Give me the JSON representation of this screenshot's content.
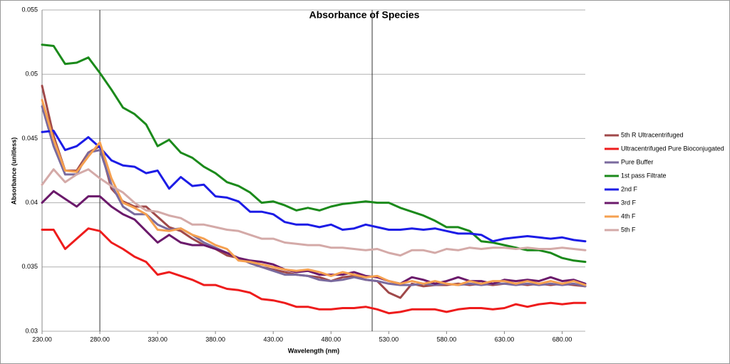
{
  "chart_data": {
    "type": "line",
    "title": "Absorbance of Species",
    "x_label": "Wavelength (nm)",
    "y_label": "Absorbance (unitless)",
    "x": [
      230,
      240,
      250,
      260,
      270,
      280,
      290,
      300,
      310,
      320,
      330,
      340,
      350,
      360,
      370,
      380,
      390,
      400,
      410,
      420,
      430,
      440,
      450,
      460,
      470,
      480,
      490,
      500,
      510,
      520,
      530,
      540,
      550,
      560,
      570,
      580,
      590,
      600,
      610,
      620,
      630,
      640,
      650,
      660,
      670,
      680,
      690,
      700
    ],
    "xlim": [
      230,
      700
    ],
    "xticks": [
      {
        "value": 230,
        "label": "230.00"
      },
      {
        "value": 280,
        "label": "280.00"
      },
      {
        "value": 330,
        "label": "330.00"
      },
      {
        "value": 380,
        "label": "380.00"
      },
      {
        "value": 430,
        "label": "430.00"
      },
      {
        "value": 480,
        "label": "480.00"
      },
      {
        "value": 530,
        "label": "530.00"
      },
      {
        "value": 580,
        "label": "580.00"
      },
      {
        "value": 630,
        "label": "630.00"
      },
      {
        "value": 680,
        "label": "680.00"
      }
    ],
    "ylim": [
      0.03,
      0.055
    ],
    "yticks": [
      0.03,
      0.035,
      0.04,
      0.045,
      0.05,
      0.055
    ],
    "grid": true,
    "legend": "right",
    "vertical_lines": [
      280,
      515.6
    ],
    "series": [
      {
        "name": "5th R Ultracentrifuged",
        "color": "#a0494a",
        "values": [
          0.0491,
          0.0452,
          0.0425,
          0.0425,
          0.0439,
          0.0444,
          0.0411,
          0.0401,
          0.0397,
          0.0397,
          0.0389,
          0.0381,
          0.0378,
          0.0372,
          0.0367,
          0.0364,
          0.0359,
          0.0357,
          0.0353,
          0.035,
          0.0348,
          0.0346,
          0.0344,
          0.0343,
          0.0342,
          0.0339,
          0.0342,
          0.0343,
          0.034,
          0.0339,
          0.033,
          0.0326,
          0.0337,
          0.0335,
          0.0336,
          0.0336,
          0.0337,
          0.0336,
          0.0337,
          0.0336,
          0.0337,
          0.0337,
          0.0336,
          0.0337,
          0.0336,
          0.0337,
          0.0336,
          0.0335
        ]
      },
      {
        "name": "Ultracentrifuged Pure Bioconjugated",
        "color": "#ee1c1c",
        "values": [
          0.0379,
          0.0379,
          0.0364,
          0.0372,
          0.038,
          0.0378,
          0.0369,
          0.0364,
          0.0358,
          0.0354,
          0.0344,
          0.0346,
          0.0343,
          0.034,
          0.0336,
          0.0336,
          0.0333,
          0.0332,
          0.033,
          0.0325,
          0.0324,
          0.0322,
          0.0319,
          0.0319,
          0.0317,
          0.0317,
          0.0318,
          0.0318,
          0.0319,
          0.0317,
          0.0314,
          0.0315,
          0.0317,
          0.0317,
          0.0317,
          0.0315,
          0.0317,
          0.0318,
          0.0318,
          0.0317,
          0.0318,
          0.0321,
          0.0319,
          0.0321,
          0.0322,
          0.0321,
          0.0322,
          0.0322
        ]
      },
      {
        "name": "Pure Buffer",
        "color": "#7a6a9e",
        "values": [
          0.0475,
          0.0444,
          0.0422,
          0.0422,
          0.0439,
          0.0441,
          0.0414,
          0.0397,
          0.0391,
          0.0391,
          0.0383,
          0.0379,
          0.038,
          0.0375,
          0.0369,
          0.0365,
          0.0361,
          0.0357,
          0.0353,
          0.035,
          0.0347,
          0.0344,
          0.0344,
          0.0343,
          0.034,
          0.0339,
          0.034,
          0.0342,
          0.034,
          0.0339,
          0.0337,
          0.0336,
          0.0336,
          0.0337,
          0.0336,
          0.0337,
          0.0336,
          0.0337,
          0.0336,
          0.0337,
          0.0337,
          0.0336,
          0.0337,
          0.0336,
          0.0337,
          0.0336,
          0.0337,
          0.0335
        ]
      },
      {
        "name": "1st pass Filtrate",
        "color": "#1b8a1b",
        "values": [
          0.0523,
          0.0522,
          0.0508,
          0.0509,
          0.0513,
          0.0501,
          0.0488,
          0.0474,
          0.0469,
          0.0461,
          0.0444,
          0.0449,
          0.0439,
          0.0435,
          0.0428,
          0.0423,
          0.0416,
          0.0413,
          0.0408,
          0.04,
          0.0401,
          0.0398,
          0.0394,
          0.0396,
          0.0394,
          0.0397,
          0.0399,
          0.04,
          0.0401,
          0.04,
          0.04,
          0.0396,
          0.0393,
          0.039,
          0.0386,
          0.0381,
          0.0381,
          0.0378,
          0.037,
          0.0369,
          0.0367,
          0.0365,
          0.0363,
          0.0363,
          0.0361,
          0.0357,
          0.0355,
          0.0354
        ]
      },
      {
        "name": "2nd F",
        "color": "#1c1ce6",
        "values": [
          0.0455,
          0.0456,
          0.0441,
          0.0444,
          0.0451,
          0.0443,
          0.0433,
          0.0429,
          0.0428,
          0.0423,
          0.0425,
          0.0411,
          0.042,
          0.0413,
          0.0414,
          0.0405,
          0.0404,
          0.0401,
          0.0393,
          0.0393,
          0.0391,
          0.0385,
          0.0383,
          0.0383,
          0.0381,
          0.0383,
          0.0379,
          0.038,
          0.0383,
          0.0381,
          0.0379,
          0.0379,
          0.038,
          0.0379,
          0.038,
          0.0378,
          0.0376,
          0.0376,
          0.0375,
          0.037,
          0.0372,
          0.0373,
          0.0374,
          0.0373,
          0.0372,
          0.0373,
          0.0371,
          0.037
        ]
      },
      {
        "name": "3rd F",
        "color": "#6b1a6b",
        "values": [
          0.04,
          0.0409,
          0.0403,
          0.0397,
          0.0405,
          0.0405,
          0.0397,
          0.0391,
          0.0387,
          0.0378,
          0.0369,
          0.0375,
          0.0369,
          0.0367,
          0.0367,
          0.0364,
          0.0361,
          0.0357,
          0.0355,
          0.0354,
          0.0352,
          0.0348,
          0.0346,
          0.0347,
          0.0344,
          0.0344,
          0.0344,
          0.0346,
          0.0343,
          0.0342,
          0.0339,
          0.0337,
          0.0342,
          0.034,
          0.0337,
          0.0339,
          0.0342,
          0.0339,
          0.0339,
          0.0337,
          0.034,
          0.0339,
          0.034,
          0.0339,
          0.0342,
          0.0339,
          0.034,
          0.0337
        ]
      },
      {
        "name": "4th F",
        "color": "#f5a050",
        "values": [
          0.048,
          0.0449,
          0.0425,
          0.0424,
          0.0436,
          0.0447,
          0.0419,
          0.04,
          0.0396,
          0.0391,
          0.0379,
          0.0378,
          0.038,
          0.0375,
          0.0372,
          0.0367,
          0.0364,
          0.0355,
          0.0354,
          0.0352,
          0.035,
          0.0348,
          0.0347,
          0.0348,
          0.0346,
          0.0343,
          0.0346,
          0.0344,
          0.0342,
          0.0343,
          0.0339,
          0.0337,
          0.0339,
          0.0337,
          0.0339,
          0.0337,
          0.0336,
          0.0339,
          0.0337,
          0.0339,
          0.0339,
          0.0337,
          0.0339,
          0.0337,
          0.0339,
          0.0337,
          0.0339,
          0.0336
        ]
      },
      {
        "name": "5th F",
        "color": "#d4aaa8",
        "values": [
          0.0414,
          0.0426,
          0.0416,
          0.0422,
          0.0426,
          0.0419,
          0.0413,
          0.0408,
          0.04,
          0.0394,
          0.0393,
          0.039,
          0.0388,
          0.0383,
          0.0383,
          0.0381,
          0.0379,
          0.0378,
          0.0375,
          0.0372,
          0.0372,
          0.0369,
          0.0368,
          0.0367,
          0.0367,
          0.0365,
          0.0365,
          0.0364,
          0.0363,
          0.0364,
          0.0361,
          0.0359,
          0.0363,
          0.0363,
          0.0361,
          0.0364,
          0.0363,
          0.0365,
          0.0364,
          0.0365,
          0.0365,
          0.0364,
          0.0365,
          0.0364,
          0.0364,
          0.0365,
          0.0364,
          0.0363
        ]
      }
    ]
  }
}
